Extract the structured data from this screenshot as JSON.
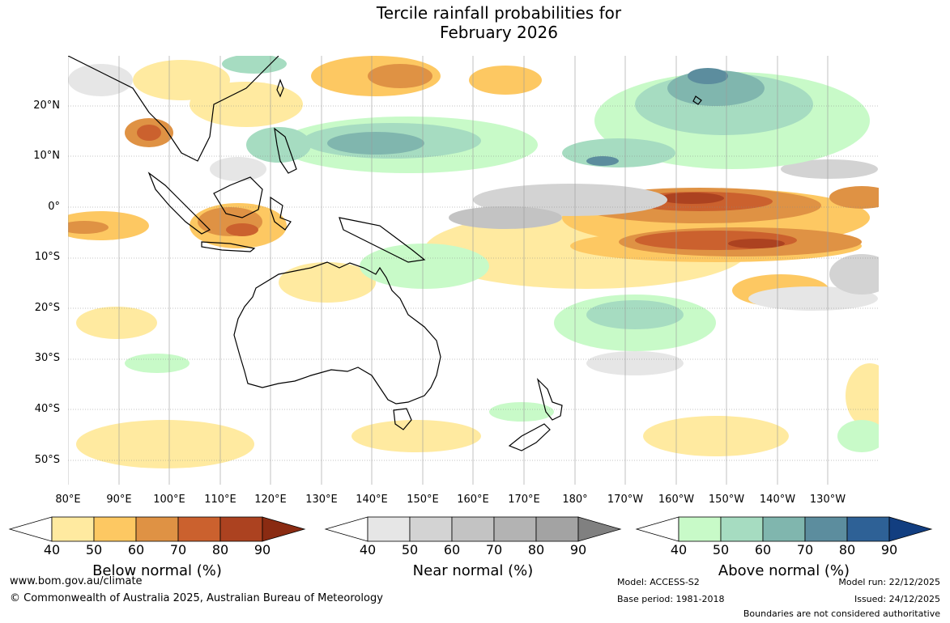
{
  "title_line1": "Tercile rainfall probabilities for",
  "title_line2": "February 2026",
  "lat_labels": [
    "20°N",
    "10°N",
    "0°",
    "10°S",
    "20°S",
    "30°S",
    "40°S",
    "50°S"
  ],
  "lon_labels": [
    "80°E",
    "90°E",
    "100°E",
    "110°E",
    "120°E",
    "130°E",
    "140°E",
    "150°E",
    "160°E",
    "170°E",
    "180°",
    "170°W",
    "160°W",
    "150°W",
    "140°W",
    "130°W"
  ],
  "colorbars": [
    {
      "title": "Below normal (%)",
      "ticks": [
        "40",
        "50",
        "60",
        "70",
        "80",
        "90"
      ],
      "colors": [
        "#ffeaa0",
        "#fdc862",
        "#df9244",
        "#cb612e",
        "#ac4220",
        "#8a2b12"
      ]
    },
    {
      "title": "Near normal (%)",
      "ticks": [
        "40",
        "50",
        "60",
        "70",
        "80",
        "90"
      ],
      "colors": [
        "#e6e6e6",
        "#d3d3d3",
        "#c3c3c3",
        "#b3b3b3",
        "#a3a3a3",
        "#808080"
      ]
    },
    {
      "title": "Above normal (%)",
      "ticks": [
        "40",
        "50",
        "60",
        "70",
        "80",
        "90"
      ],
      "colors": [
        "#c8fac8",
        "#a6dcc1",
        "#80b6ae",
        "#5c8d9e",
        "#2e6196",
        "#123e80"
      ]
    }
  ],
  "footer": {
    "website": "www.bom.gov.au/climate",
    "copyright": "© Commonwealth of Australia 2025, Australian Bureau of Meteorology",
    "model": "Model: ACCESS-S2",
    "base_period": "Base period: 1981-2018",
    "model_run": "Model run: 22/12/2025",
    "issued": "Issued: 24/12/2025",
    "disclaimer": "Boundaries are not considered authoritative"
  }
}
